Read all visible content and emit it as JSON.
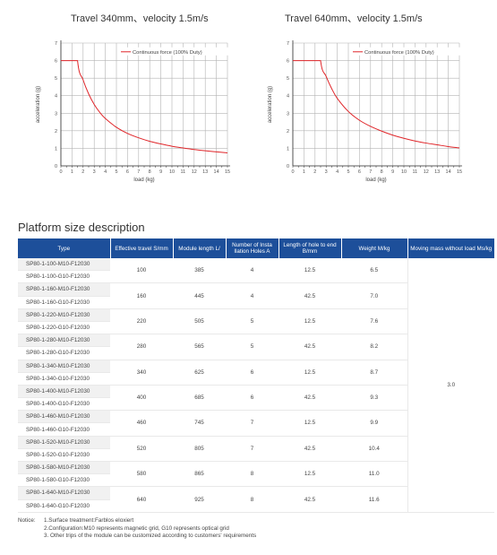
{
  "charts": [
    {
      "title": "Travel 340mm、velocity 1.5m/s",
      "chart_data": {
        "type": "line",
        "ylabel": "acceleration (g)",
        "xlabel": "load (kg)",
        "xlim": [
          0,
          15
        ],
        "ylim": [
          0,
          7
        ],
        "x_ticks": [
          "0",
          "1",
          "2",
          "3",
          "4",
          "5",
          "6",
          "7",
          "8",
          "9",
          "10",
          "11",
          "12",
          "13",
          "14",
          "15"
        ],
        "y_ticks": [
          "0",
          "1",
          "2",
          "3",
          "4",
          "5",
          "6",
          "7"
        ],
        "grid": true,
        "legend_position": "top-right",
        "series": [
          {
            "name": "Continuous force (100% Duty)",
            "color": "#e0262a",
            "x": [
              0,
              1.5,
              2,
              2.5,
              3,
              3.5,
              4,
              5,
              6,
              7,
              8,
              9,
              10,
              11,
              12,
              13,
              14,
              15
            ],
            "y": [
              6,
              6,
              4.9,
              4.1,
              3.5,
              3.05,
              2.7,
              2.2,
              1.85,
              1.6,
              1.4,
              1.25,
              1.12,
              1.02,
              0.93,
              0.86,
              0.8,
              0.74
            ]
          }
        ]
      }
    },
    {
      "title": "Travel 640mm、velocity 1.5m/s",
      "chart_data": {
        "type": "line",
        "ylabel": "acceleration (g)",
        "xlabel": "load (kg)",
        "xlim": [
          0,
          15
        ],
        "ylim": [
          0,
          7
        ],
        "x_ticks": [
          "0",
          "1",
          "2",
          "3",
          "4",
          "5",
          "6",
          "7",
          "8",
          "9",
          "10",
          "11",
          "12",
          "13",
          "14",
          "15"
        ],
        "y_ticks": [
          "0",
          "1",
          "2",
          "3",
          "4",
          "5",
          "6",
          "7"
        ],
        "grid": true,
        "legend_position": "top-right",
        "series": [
          {
            "name": "Continuous force (100% Duty)",
            "color": "#e0262a",
            "x": [
              0,
              2.5,
              3,
              3.5,
              4,
              5,
              6,
              7,
              8,
              9,
              10,
              11,
              12,
              13,
              14,
              15
            ],
            "y": [
              6,
              6,
              5.1,
              4.4,
              3.85,
              3.1,
              2.6,
              2.25,
              1.98,
              1.75,
              1.57,
              1.42,
              1.3,
              1.2,
              1.1,
              1.02
            ]
          }
        ]
      }
    }
  ],
  "section_title": "Platform size description",
  "table": {
    "headers": [
      "Type",
      "Effective travel S/mm",
      "Module length L/",
      "Number of Insta llation Holes A",
      "Length of hole to end B/mm",
      "Weight M/kg",
      "Moving mass without load Ms/kg"
    ],
    "groups": [
      {
        "types": [
          "SP80-1-100-M10-F12030",
          "SP80-1-100-G10-F12030"
        ],
        "travel": "100",
        "length": "385",
        "holes": "4",
        "hole_end": "12.5",
        "weight": "6.5"
      },
      {
        "types": [
          "SP80-1-160-M10-F12030",
          "SP80-1-160-G10-F12030"
        ],
        "travel": "160",
        "length": "445",
        "holes": "4",
        "hole_end": "42.5",
        "weight": "7.0"
      },
      {
        "types": [
          "SP80-1-220-M10-F12030",
          "SP80-1-220-G10-F12030"
        ],
        "travel": "220",
        "length": "505",
        "holes": "5",
        "hole_end": "12.5",
        "weight": "7.6"
      },
      {
        "types": [
          "SP80-1-280-M10-F12030",
          "SP80-1-280-G10-F12030"
        ],
        "travel": "280",
        "length": "565",
        "holes": "5",
        "hole_end": "42.5",
        "weight": "8.2"
      },
      {
        "types": [
          "SP80-1-340-M10-F12030",
          "SP80-1-340-G10-F12030"
        ],
        "travel": "340",
        "length": "625",
        "holes": "6",
        "hole_end": "12.5",
        "weight": "8.7"
      },
      {
        "types": [
          "SP80-1-400-M10-F12030",
          "SP80-1-400-G10-F12030"
        ],
        "travel": "400",
        "length": "685",
        "holes": "6",
        "hole_end": "42.5",
        "weight": "9.3"
      },
      {
        "types": [
          "SP80-1-460-M10-F12030",
          "SP80-1-460-G10-F12030"
        ],
        "travel": "460",
        "length": "745",
        "holes": "7",
        "hole_end": "12.5",
        "weight": "9.9"
      },
      {
        "types": [
          "SP80-1-520-M10-F12030",
          "SP80-1-520-G10-F12030"
        ],
        "travel": "520",
        "length": "805",
        "holes": "7",
        "hole_end": "42.5",
        "weight": "10.4"
      },
      {
        "types": [
          "SP80-1-580-M10-F12030",
          "SP80-1-580-G10-F12030"
        ],
        "travel": "580",
        "length": "865",
        "holes": "8",
        "hole_end": "12.5",
        "weight": "11.0"
      },
      {
        "types": [
          "SP80-1-640-M10-F12030",
          "SP80-1-640-G10-F12030"
        ],
        "travel": "640",
        "length": "925",
        "holes": "8",
        "hole_end": "42.5",
        "weight": "11.6"
      }
    ],
    "moving_mass": "3.0"
  },
  "notice": {
    "label": "Notice:",
    "items": [
      "1.Surface treatment:Farblos eloxiert",
      "2.Configuration:M10 represents magnetic grid, G10 represents optical grid",
      "3. Other trips of the module can be customized according to customers' requirements"
    ]
  },
  "colors": {
    "header_bg": "#1d4f9a",
    "row_stripe": "#f1f1f1",
    "curve": "#e0262a",
    "grid": "#b3b3b3"
  }
}
